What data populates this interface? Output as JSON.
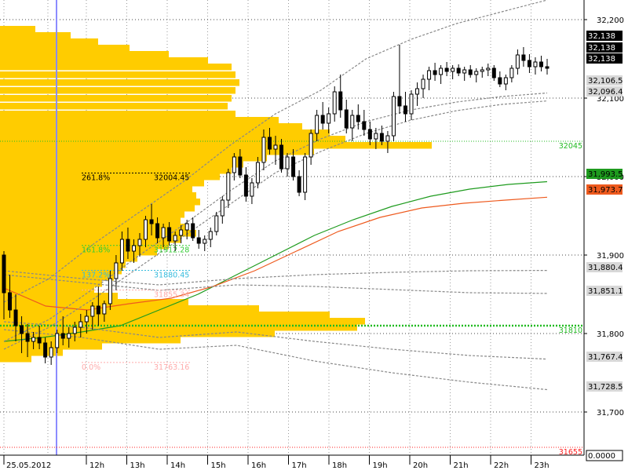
{
  "chart_data": {
    "type": "candlestick",
    "title": "",
    "xlabel": "",
    "ylabel": "",
    "date_label": "25.05.2012",
    "x_ticks": [
      "12h",
      "13h",
      "14h",
      "15h",
      "16h",
      "17h",
      "18h",
      "19h",
      "20h",
      "21h",
      "22h",
      "23h"
    ],
    "y_ticks": [
      {
        "value": 32200,
        "label": "32,200"
      },
      {
        "value": 32100,
        "label": "32,100"
      },
      {
        "value": 32000,
        "label": "32,000"
      },
      {
        "value": 31900,
        "label": "31,900"
      },
      {
        "value": 31800,
        "label": "31,800"
      },
      {
        "value": 31700,
        "label": "31,700"
      }
    ],
    "ylim": [
      31645,
      32225
    ],
    "grid": true,
    "price_tags": [
      {
        "label": "32,138",
        "value": 32138,
        "bg": "#000000",
        "fg": "#ffffff"
      },
      {
        "label": "32,138",
        "value": 32138,
        "bg": "#000000",
        "fg": "#ffffff"
      },
      {
        "label": "32,138",
        "value": 32138,
        "bg": "#000000",
        "fg": "#ffffff"
      },
      {
        "label": "32,106.5",
        "value": 32106.5,
        "bg": "#d8d8d8",
        "fg": "#000000"
      },
      {
        "label": "32,096.4",
        "value": 32096.4,
        "bg": "#d8d8d8",
        "fg": "#000000"
      },
      {
        "label": "31,993.5",
        "value": 31993.5,
        "bg": "#1e9b1e",
        "fg": "#000000"
      },
      {
        "label": "31,973.7",
        "value": 31973.7,
        "bg": "#ee5a1e",
        "fg": "#000000"
      },
      {
        "label": "31,880.4",
        "value": 31880.4,
        "bg": "#d8d8d8",
        "fg": "#000000"
      },
      {
        "label": "31,851.1",
        "value": 31851.1,
        "bg": "#d8d8d8",
        "fg": "#000000"
      },
      {
        "label": "31,767.4",
        "value": 31767.4,
        "bg": "#d8d8d8",
        "fg": "#000000"
      },
      {
        "label": "31,728.5",
        "value": 31728.5,
        "bg": "#d8d8d8",
        "fg": "#000000"
      }
    ],
    "bottom_tag": "0.0000",
    "levels": [
      {
        "label": "32045",
        "value": 32045,
        "color": "#22bb22"
      },
      {
        "label": "31810",
        "value": 31810,
        "color": "#22bb22"
      },
      {
        "label": "31655",
        "value": 31655,
        "color": "#ff2222"
      }
    ],
    "fib_levels": [
      {
        "ratio": "261.8%",
        "price": "32004.45",
        "value": 32004.45,
        "color": "#000000"
      },
      {
        "ratio": "161.8%",
        "price": "31912.28",
        "value": 31912.28,
        "color": "#33cc33"
      },
      {
        "ratio": "137.2%",
        "price": "31880.45",
        "value": 31880.45,
        "color": "#33bbdd"
      },
      {
        "ratio": "",
        "price": "31855.34",
        "value": 31855.34,
        "color": "#ffaaaa"
      },
      {
        "ratio": "0.0%",
        "price": "31763.16",
        "value": 31763.16,
        "color": "#ffaaaa"
      }
    ],
    "candles": [
      [
        31900,
        31905,
        31818,
        31852
      ],
      [
        31852,
        31875,
        31820,
        31830
      ],
      [
        31830,
        31850,
        31790,
        31810
      ],
      [
        31810,
        31822,
        31775,
        31800
      ],
      [
        31800,
        31812,
        31770,
        31790
      ],
      [
        31790,
        31802,
        31780,
        31795
      ],
      [
        31795,
        31810,
        31780,
        31788
      ],
      [
        31788,
        31795,
        31762,
        31770
      ],
      [
        31770,
        31790,
        31760,
        31782
      ],
      [
        31782,
        31805,
        31775,
        31800
      ],
      [
        31800,
        31822,
        31785,
        31794
      ],
      [
        31794,
        31808,
        31782,
        31800
      ],
      [
        31800,
        31815,
        31790,
        31808
      ],
      [
        31808,
        31825,
        31795,
        31815
      ],
      [
        31815,
        31830,
        31800,
        31822
      ],
      [
        31822,
        31840,
        31805,
        31835
      ],
      [
        31835,
        31860,
        31810,
        31825
      ],
      [
        31825,
        31842,
        31815,
        31838
      ],
      [
        31838,
        31880,
        31830,
        31870
      ],
      [
        31870,
        31900,
        31855,
        31890
      ],
      [
        31890,
        31930,
        31880,
        31920
      ],
      [
        31920,
        31935,
        31895,
        31905
      ],
      [
        31905,
        31920,
        31890,
        31912
      ],
      [
        31912,
        31928,
        31898,
        31920
      ],
      [
        31920,
        31950,
        31910,
        31945
      ],
      [
        31945,
        31965,
        31925,
        31940
      ],
      [
        31940,
        31948,
        31915,
        31922
      ],
      [
        31922,
        31940,
        31910,
        31935
      ],
      [
        31935,
        31942,
        31912,
        31918
      ],
      [
        31918,
        31930,
        31905,
        31925
      ],
      [
        31925,
        31938,
        31915,
        31932
      ],
      [
        31932,
        31945,
        31920,
        31940
      ],
      [
        31940,
        31948,
        31918,
        31922
      ],
      [
        31922,
        31932,
        31908,
        31915
      ],
      [
        31915,
        31925,
        31905,
        31920
      ],
      [
        31920,
        31935,
        31910,
        31930
      ],
      [
        31930,
        31955,
        31925,
        31950
      ],
      [
        31950,
        31975,
        31940,
        31970
      ],
      [
        31970,
        32010,
        31960,
        32005
      ],
      [
        32005,
        32030,
        31995,
        32025
      ],
      [
        32025,
        32035,
        31998,
        32002
      ],
      [
        32002,
        32012,
        31968,
        31975
      ],
      [
        31975,
        31998,
        31965,
        31992
      ],
      [
        31992,
        32025,
        31985,
        32018
      ],
      [
        32018,
        32060,
        32008,
        32050
      ],
      [
        32050,
        32062,
        32028,
        32035
      ],
      [
        32035,
        32052,
        32015,
        32040
      ],
      [
        32040,
        32048,
        32005,
        32010
      ],
      [
        32010,
        32030,
        32000,
        32025
      ],
      [
        32025,
        32035,
        31995,
        32000
      ],
      [
        32000,
        32008,
        31975,
        31980
      ],
      [
        31980,
        32030,
        31970,
        32025
      ],
      [
        32025,
        32060,
        32015,
        32055
      ],
      [
        32055,
        32085,
        32045,
        32078
      ],
      [
        32078,
        32095,
        32060,
        32068
      ],
      [
        32068,
        32088,
        32055,
        32080
      ],
      [
        32080,
        32115,
        32070,
        32108
      ],
      [
        32108,
        32130,
        32075,
        32085
      ],
      [
        32085,
        32098,
        32055,
        32062
      ],
      [
        32062,
        32085,
        32045,
        32078
      ],
      [
        32078,
        32092,
        32060,
        32070
      ],
      [
        32070,
        32085,
        32052,
        32060
      ],
      [
        32060,
        32070,
        32040,
        32048
      ],
      [
        32048,
        32062,
        32035,
        32055
      ],
      [
        32055,
        32065,
        32040,
        32045
      ],
      [
        32045,
        32058,
        32030,
        32052
      ],
      [
        32052,
        32108,
        32045,
        32102
      ],
      [
        32102,
        32168,
        32080,
        32090
      ],
      [
        32090,
        32108,
        32070,
        32080
      ],
      [
        32080,
        32110,
        32072,
        32105
      ],
      [
        32105,
        32120,
        32090,
        32112
      ],
      [
        32112,
        32130,
        32100,
        32124
      ],
      [
        32124,
        32140,
        32110,
        32135
      ],
      [
        32135,
        32145,
        32122,
        32130
      ],
      [
        32130,
        32142,
        32118,
        32138
      ],
      [
        32138,
        32146,
        32128,
        32134
      ],
      [
        32134,
        32142,
        32124,
        32138
      ],
      [
        32138,
        32143,
        32128,
        32132
      ],
      [
        32132,
        32140,
        32122,
        32136
      ],
      [
        32136,
        32142,
        32126,
        32130
      ],
      [
        32130,
        32138,
        32120,
        32134
      ],
      [
        32134,
        32140,
        32126,
        32136
      ],
      [
        32136,
        32144,
        32128,
        32138
      ],
      [
        32138,
        32142,
        32122,
        32126
      ],
      [
        32126,
        32134,
        32114,
        32118
      ],
      [
        32118,
        32130,
        32110,
        32126
      ],
      [
        32126,
        32142,
        32120,
        32138
      ],
      [
        32138,
        32162,
        32130,
        32155
      ],
      [
        32155,
        32165,
        32140,
        32148
      ],
      [
        32148,
        32156,
        32132,
        32140
      ],
      [
        32140,
        32152,
        32130,
        32146
      ],
      [
        32146,
        32154,
        32134,
        32140
      ],
      [
        32140,
        32150,
        32130,
        32138
      ]
    ],
    "lines": [
      {
        "name": "",
        "color": "#1e9b1e",
        "dash": "",
        "values": [
          31790,
          31795,
          31802,
          31810,
          31830,
          31850,
          31875,
          31900,
          31925,
          31945,
          31962,
          31975,
          31984,
          31990,
          31993.5
        ]
      },
      {
        "name": "",
        "color": "#ee5a1e",
        "dash": "",
        "values": [
          31858,
          31835,
          31830,
          31838,
          31845,
          31860,
          31880,
          31905,
          31930,
          31948,
          31960,
          31966,
          31970,
          31973.7
        ]
      },
      {
        "name": "",
        "color": "#888888",
        "dash": "3,2",
        "values": [
          31840,
          31870,
          31915,
          31955,
          31995,
          32040,
          32080,
          32110,
          32150,
          32175,
          32195,
          32210,
          32225
        ]
      },
      {
        "name": "",
        "color": "#888888",
        "dash": "3,2",
        "values": [
          31790,
          31818,
          31858,
          31900,
          31940,
          31982,
          32020,
          32048,
          32070,
          32085,
          32095,
          32102,
          32106.5
        ]
      },
      {
        "name": "",
        "color": "#888888",
        "dash": "3,2",
        "values": [
          31780,
          31808,
          31845,
          31885,
          31925,
          31965,
          32005,
          32032,
          32055,
          32072,
          32084,
          32092,
          32096.4
        ]
      },
      {
        "name": "",
        "color": "#888888",
        "dash": "3,2",
        "values": [
          31880,
          31870,
          31862,
          31870,
          31875,
          31878,
          31880,
          31880.4
        ]
      },
      {
        "name": "",
        "color": "#888888",
        "dash": "3,2",
        "values": [
          31875,
          31865,
          31855,
          31862,
          31860,
          31856,
          31852,
          31851.1
        ]
      },
      {
        "name": "",
        "color": "#888888",
        "dash": "3,2",
        "values": [
          31815,
          31808,
          31795,
          31802,
          31790,
          31780,
          31772,
          31767.4
        ]
      },
      {
        "name": "",
        "color": "#888888",
        "dash": "3,2",
        "values": [
          31805,
          31795,
          31780,
          31785,
          31765,
          31750,
          31738,
          31728.5
        ]
      }
    ],
    "volume_profile": {
      "color": "#ffcc00",
      "bins": [
        [
          32188,
          45
        ],
        [
          32180,
          90
        ],
        [
          32172,
          125
        ],
        [
          32164,
          165
        ],
        [
          32156,
          215
        ],
        [
          32148,
          265
        ],
        [
          32140,
          295
        ],
        [
          32130,
          300
        ],
        [
          32120,
          305
        ],
        [
          32110,
          300
        ],
        [
          32100,
          295
        ],
        [
          32090,
          290
        ],
        [
          32080,
          300
        ],
        [
          32072,
          355
        ],
        [
          32064,
          385
        ],
        [
          32056,
          420
        ],
        [
          32048,
          440
        ],
        [
          32040,
          550
        ],
        [
          32032,
          400
        ],
        [
          32024,
          340
        ],
        [
          32016,
          310
        ],
        [
          32008,
          295
        ],
        [
          32000,
          280
        ],
        [
          31992,
          260
        ],
        [
          31984,
          245
        ],
        [
          31976,
          250
        ],
        [
          31968,
          255
        ],
        [
          31960,
          248
        ],
        [
          31952,
          235
        ],
        [
          31944,
          230
        ],
        [
          31936,
          240
        ],
        [
          31928,
          250
        ],
        [
          31920,
          230
        ],
        [
          31912,
          215
        ],
        [
          31904,
          200
        ],
        [
          31896,
          175
        ],
        [
          31888,
          160
        ],
        [
          31880,
          155
        ],
        [
          31872,
          145
        ],
        [
          31864,
          130
        ],
        [
          31856,
          120
        ],
        [
          31848,
          150
        ],
        [
          31840,
          240
        ],
        [
          31832,
          330
        ],
        [
          31824,
          420
        ],
        [
          31816,
          465
        ],
        [
          31808,
          455
        ],
        [
          31800,
          350
        ],
        [
          31792,
          230
        ],
        [
          31784,
          130
        ],
        [
          31776,
          80
        ],
        [
          31768,
          40
        ]
      ]
    }
  }
}
